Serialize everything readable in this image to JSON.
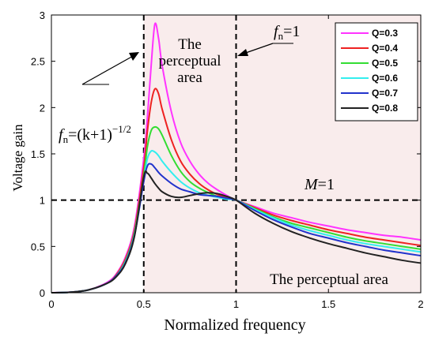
{
  "chart_data": {
    "type": "line",
    "xlabel": "Normalized frequency",
    "ylabel": "Voltage gain",
    "xlim": [
      0,
      2
    ],
    "ylim": [
      0,
      3
    ],
    "xticks": [
      "0",
      "0.5",
      "1",
      "1.5",
      "2"
    ],
    "yticks": [
      "0",
      "0.5",
      "1",
      "1.5",
      "2",
      "2.5",
      "3"
    ],
    "grid": false,
    "legend_position": "top-right",
    "shaded_regions": [
      {
        "x": [
          0.5,
          1
        ],
        "color": "#f9ecec"
      },
      {
        "x": [
          1,
          2
        ],
        "color": "#f9ecec"
      }
    ],
    "reference_lines": {
      "vertical_x": [
        0.5,
        1
      ],
      "horizontal_y": 1
    },
    "series": [
      {
        "name": "Q=0.3",
        "color": "#ff33ff",
        "x": [
          0,
          0.1,
          0.2,
          0.3,
          0.35,
          0.4,
          0.45,
          0.5,
          0.52,
          0.54,
          0.56,
          0.58,
          0.6,
          0.65,
          0.7,
          0.75,
          0.8,
          0.85,
          0.9,
          0.95,
          1,
          1.1,
          1.2,
          1.3,
          1.4,
          1.5,
          1.6,
          1.7,
          1.8,
          1.9,
          2
        ],
        "y": [
          0,
          0.006,
          0.03,
          0.11,
          0.2,
          0.38,
          0.72,
          1.45,
          1.9,
          2.45,
          2.9,
          2.75,
          2.45,
          1.95,
          1.62,
          1.42,
          1.28,
          1.18,
          1.11,
          1.05,
          1,
          0.93,
          0.86,
          0.81,
          0.76,
          0.72,
          0.68,
          0.65,
          0.62,
          0.6,
          0.57
        ]
      },
      {
        "name": "Q=0.4",
        "color": "#ee2222",
        "x": [
          0,
          0.1,
          0.2,
          0.3,
          0.35,
          0.4,
          0.45,
          0.5,
          0.52,
          0.54,
          0.56,
          0.58,
          0.6,
          0.65,
          0.7,
          0.75,
          0.8,
          0.85,
          0.9,
          0.95,
          1,
          1.1,
          1.2,
          1.3,
          1.4,
          1.5,
          1.6,
          1.7,
          1.8,
          1.9,
          2
        ],
        "y": [
          0,
          0.005,
          0.03,
          0.1,
          0.19,
          0.36,
          0.68,
          1.35,
          1.75,
          2.05,
          2.2,
          2.15,
          1.98,
          1.65,
          1.42,
          1.28,
          1.18,
          1.11,
          1.06,
          1.03,
          1,
          0.92,
          0.84,
          0.78,
          0.73,
          0.68,
          0.64,
          0.6,
          0.57,
          0.54,
          0.51
        ]
      },
      {
        "name": "Q=0.5",
        "color": "#33dd33",
        "x": [
          0,
          0.1,
          0.2,
          0.3,
          0.35,
          0.4,
          0.45,
          0.5,
          0.52,
          0.54,
          0.56,
          0.58,
          0.6,
          0.65,
          0.7,
          0.75,
          0.8,
          0.85,
          0.9,
          0.95,
          1,
          1.1,
          1.2,
          1.3,
          1.4,
          1.5,
          1.6,
          1.7,
          1.8,
          1.9,
          2
        ],
        "y": [
          0,
          0.005,
          0.03,
          0.1,
          0.18,
          0.34,
          0.65,
          1.27,
          1.58,
          1.75,
          1.79,
          1.77,
          1.7,
          1.48,
          1.31,
          1.2,
          1.13,
          1.08,
          1.04,
          1.02,
          1,
          0.91,
          0.82,
          0.75,
          0.7,
          0.65,
          0.6,
          0.56,
          0.53,
          0.5,
          0.47
        ]
      },
      {
        "name": "Q=0.6",
        "color": "#33eeee",
        "x": [
          0,
          0.1,
          0.2,
          0.3,
          0.35,
          0.4,
          0.45,
          0.5,
          0.52,
          0.54,
          0.56,
          0.58,
          0.6,
          0.65,
          0.7,
          0.75,
          0.8,
          0.85,
          0.9,
          0.95,
          1,
          1.1,
          1.2,
          1.3,
          1.4,
          1.5,
          1.6,
          1.7,
          1.8,
          1.9,
          2
        ],
        "y": [
          0,
          0.005,
          0.03,
          0.1,
          0.18,
          0.33,
          0.63,
          1.22,
          1.45,
          1.53,
          1.52,
          1.48,
          1.42,
          1.3,
          1.2,
          1.13,
          1.08,
          1.05,
          1.03,
          1.01,
          1,
          0.9,
          0.81,
          0.73,
          0.67,
          0.62,
          0.57,
          0.53,
          0.5,
          0.47,
          0.44
        ]
      },
      {
        "name": "Q=0.7",
        "color": "#2233cc",
        "x": [
          0,
          0.1,
          0.2,
          0.3,
          0.35,
          0.4,
          0.45,
          0.5,
          0.52,
          0.54,
          0.56,
          0.58,
          0.6,
          0.65,
          0.7,
          0.75,
          0.8,
          0.85,
          0.9,
          0.95,
          1,
          1.1,
          1.2,
          1.3,
          1.4,
          1.5,
          1.6,
          1.7,
          1.8,
          1.9,
          2
        ],
        "y": [
          0,
          0.005,
          0.03,
          0.1,
          0.18,
          0.32,
          0.62,
          1.2,
          1.37,
          1.39,
          1.35,
          1.3,
          1.26,
          1.18,
          1.12,
          1.09,
          1.06,
          1.05,
          1.04,
          1.02,
          1,
          0.89,
          0.79,
          0.71,
          0.64,
          0.59,
          0.54,
          0.5,
          0.46,
          0.43,
          0.4
        ]
      },
      {
        "name": "Q=0.8",
        "color": "#222222",
        "x": [
          0,
          0.1,
          0.2,
          0.3,
          0.35,
          0.4,
          0.45,
          0.5,
          0.52,
          0.54,
          0.56,
          0.58,
          0.6,
          0.65,
          0.7,
          0.75,
          0.8,
          0.85,
          0.9,
          0.95,
          1,
          1.1,
          1.2,
          1.3,
          1.4,
          1.5,
          1.6,
          1.7,
          1.8,
          1.9,
          2
        ],
        "y": [
          0,
          0.005,
          0.03,
          0.1,
          0.17,
          0.31,
          0.61,
          1.25,
          1.29,
          1.24,
          1.18,
          1.13,
          1.09,
          1.04,
          1.03,
          1.05,
          1.07,
          1.08,
          1.07,
          1.04,
          1,
          0.86,
          0.75,
          0.66,
          0.59,
          0.53,
          0.48,
          0.43,
          0.39,
          0.35,
          0.32
        ]
      }
    ],
    "annotations": {
      "region_label_top": [
        "The",
        "perceptual",
        "area"
      ],
      "region_label_bottom": "The perceptual area",
      "fn_label": "f",
      "fn_subscript": "n",
      "fn_one_value": "=1",
      "fn_formula_mid": "=(k+1)",
      "fn_formula_exp": "−1/2",
      "m_label": "M",
      "m_value": "=1"
    }
  }
}
